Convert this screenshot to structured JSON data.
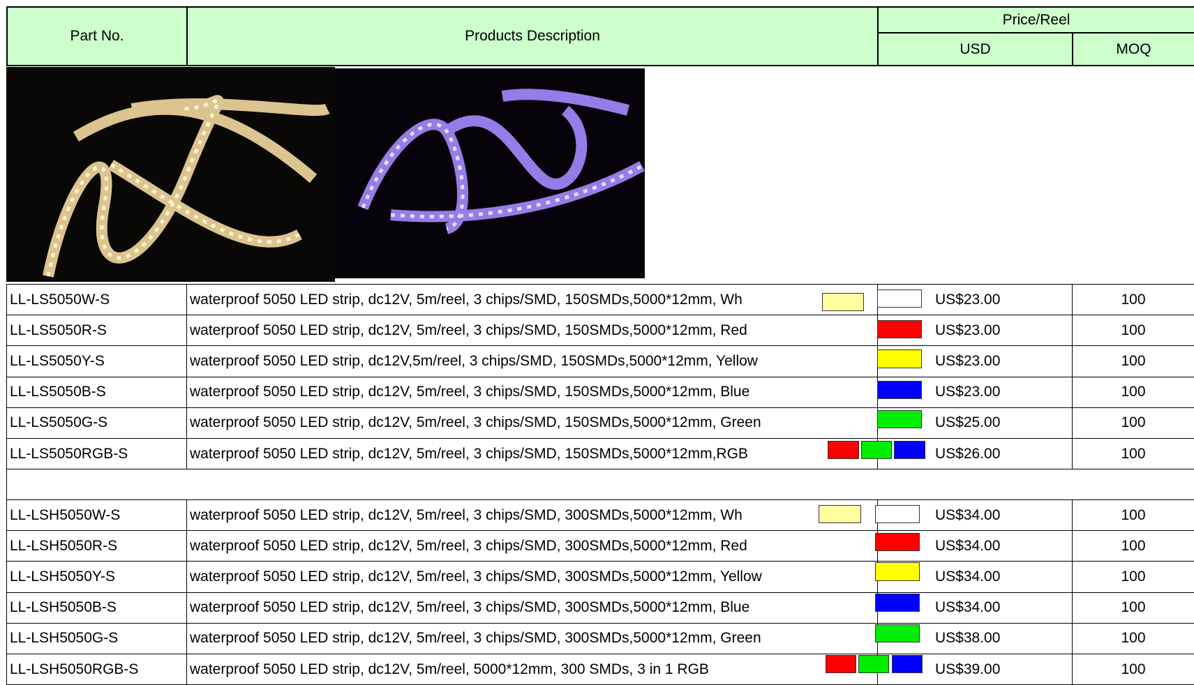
{
  "header": {
    "part_no": "Part No.",
    "description": "Products Description",
    "price_reel": "Price/Reel",
    "usd": "USD",
    "moq": "MOQ"
  },
  "table": {
    "rows": [
      [
        "LL-LS5050W-S",
        "waterproof 5050 LED strip, dc12V, 5m/reel, 3 chips/SMD, 150SMDs,5000*12mm, Wh",
        "US$23.00",
        "100"
      ],
      [
        "LL-LS5050R-S",
        "waterproof 5050 LED strip, dc12V, 5m/reel, 3 chips/SMD, 150SMDs,5000*12mm, Red",
        "US$23.00",
        "100"
      ],
      [
        "LL-LS5050Y-S",
        "waterproof 5050 LED strip, dc12V,5m/reel, 3 chips/SMD, 150SMDs,5000*12mm, Yellow",
        "US$23.00",
        "100"
      ],
      [
        "LL-LS5050B-S",
        "waterproof 5050 LED strip, dc12V, 5m/reel, 3 chips/SMD, 150SMDs,5000*12mm, Blue",
        "US$23.00",
        "100"
      ],
      [
        "LL-LS5050G-S",
        "waterproof 5050 LED strip, dc12V, 5m/reel, 3 chips/SMD, 150SMDs,5000*12mm, Green",
        "US$25.00",
        "100"
      ],
      [
        "LL-LS5050RGB-S",
        "waterproof 5050 LED strip, dc12V, 5m/reel, 3 chips/SMD, 150SMDs,5000*12mm,RGB",
        "US$26.00",
        "100"
      ],
      [
        "LL-LSH5050W-S",
        "waterproof 5050 LED strip, dc12V, 5m/reel, 3 chips/SMD, 300SMDs,5000*12mm, Wh",
        "US$34.00",
        "100"
      ],
      [
        "LL-LSH5050R-S",
        "waterproof 5050 LED strip, dc12V, 5m/reel, 3 chips/SMD, 300SMDs,5000*12mm, Red",
        "US$34.00",
        "100"
      ],
      [
        "LL-LSH5050Y-S",
        "waterproof 5050 LED strip, dc12V, 5m/reel, 3 chips/SMD, 300SMDs,5000*12mm, Yellow",
        "US$34.00",
        "100"
      ],
      [
        "LL-LSH5050B-S",
        "waterproof 5050 LED strip, dc12V, 5m/reel, 3 chips/SMD, 300SMDs,5000*12mm, Blue",
        "US$34.00",
        "100"
      ],
      [
        "LL-LSH5050G-S",
        "waterproof 5050 LED strip, dc12V, 5m/reel, 3 chips/SMD, 300SMDs,5000*12mm, Green",
        "US$38.00",
        "100"
      ],
      [
        "LL-LSH5050RGB-S",
        "waterproof 5050 LED strip, dc12V, 5m/reel, 5000*12mm, 300 SMDs, 3 in 1 RGB",
        "US$39.00",
        "100"
      ]
    ]
  }
}
